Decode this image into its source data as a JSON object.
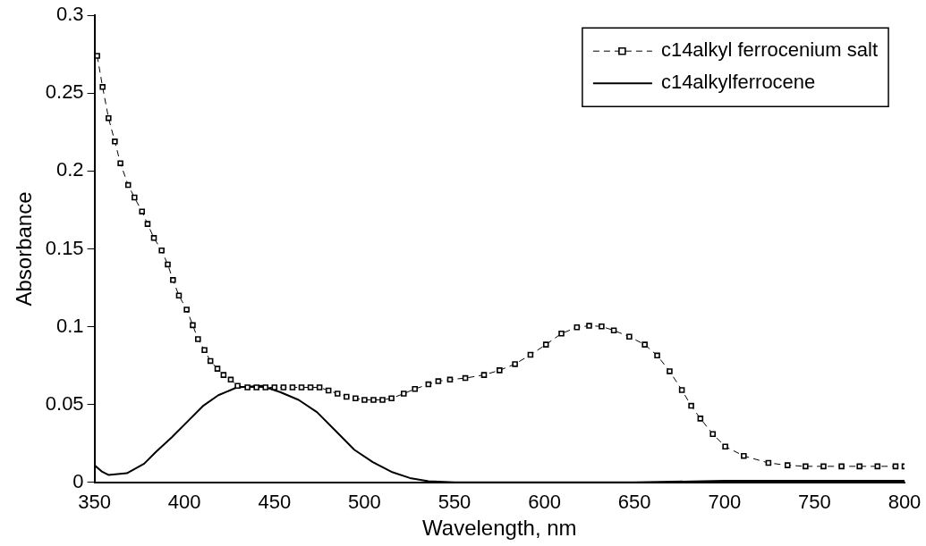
{
  "chart_data": {
    "type": "line",
    "xlabel": "Wavelength, nm",
    "ylabel": "Absorbance",
    "xlim": [
      350,
      800
    ],
    "xticks": [
      350,
      400,
      450,
      500,
      550,
      600,
      650,
      700,
      750,
      800
    ],
    "ylim": [
      0,
      0.3
    ],
    "yticks": [
      0,
      0.05,
      0.1,
      0.15,
      0.2,
      0.25,
      0.3
    ],
    "grid": false,
    "legend": "top right",
    "series": [
      {
        "name": "c14alkyl ferrocenium salt",
        "color": "#000000",
        "marker": "square",
        "line_style": "dashed",
        "x": [
          351.5,
          354.5,
          357.8,
          361.3,
          364.4,
          368.7,
          372.2,
          376.4,
          379.5,
          383,
          387.3,
          390.7,
          393.6,
          396.9,
          401.2,
          404.6,
          407.5,
          411.1,
          414.4,
          418.3,
          421.7,
          425.7,
          429.5,
          435,
          440,
          445,
          450,
          455,
          460,
          465,
          470,
          475,
          480,
          485,
          490,
          495,
          500,
          505,
          510,
          515,
          521.8,
          528,
          535.5,
          541,
          547.5,
          556,
          566.4,
          575,
          583.6,
          592.2,
          600.8,
          609.4,
          618,
          624.8,
          631.7,
          638.5,
          647.1,
          655.7,
          662.6,
          669.5,
          676.3,
          681.5,
          686.6,
          693.5,
          700.4,
          710.7,
          724.4,
          735,
          745,
          755,
          765,
          775,
          785,
          795,
          800
        ],
        "values": [
          0.274,
          0.254,
          0.234,
          0.219,
          0.205,
          0.191,
          0.183,
          0.174,
          0.166,
          0.157,
          0.149,
          0.14,
          0.13,
          0.12,
          0.111,
          0.101,
          0.092,
          0.085,
          0.078,
          0.073,
          0.069,
          0.066,
          0.062,
          0.061,
          0.061,
          0.061,
          0.061,
          0.061,
          0.061,
          0.061,
          0.061,
          0.061,
          0.059,
          0.057,
          0.055,
          0.054,
          0.053,
          0.053,
          0.053,
          0.054,
          0.057,
          0.06,
          0.063,
          0.065,
          0.066,
          0.067,
          0.069,
          0.072,
          0.076,
          0.082,
          0.0885,
          0.0956,
          0.0996,
          0.1006,
          0.1002,
          0.0976,
          0.0936,
          0.0885,
          0.0815,
          0.0714,
          0.0593,
          0.0492,
          0.041,
          0.031,
          0.023,
          0.017,
          0.0125,
          0.011,
          0.0103,
          0.0103,
          0.0103,
          0.0103,
          0.0103,
          0.0103,
          0.0103
        ]
      },
      {
        "name": "c14alkylferrocene",
        "color": "#000000",
        "marker": "none",
        "line_style": "solid",
        "x": [
          350,
          354.3,
          357.7,
          368,
          377.6,
          384.5,
          393,
          401.6,
          410.2,
          418.8,
          429.1,
          442.8,
          453.1,
          463.4,
          473.7,
          484,
          494.3,
          504.6,
          514.9,
          525.2,
          535.5,
          550,
          600,
          650,
          700,
          750,
          800
        ],
        "values": [
          0.011,
          0.0068,
          0.0048,
          0.0059,
          0.012,
          0.02,
          0.029,
          0.039,
          0.049,
          0.056,
          0.061,
          0.062,
          0.058,
          0.053,
          0.045,
          0.033,
          0.021,
          0.013,
          0.0068,
          0.0028,
          0.0008,
          0,
          0,
          0,
          0.001,
          0.001,
          0.001
        ]
      }
    ]
  }
}
